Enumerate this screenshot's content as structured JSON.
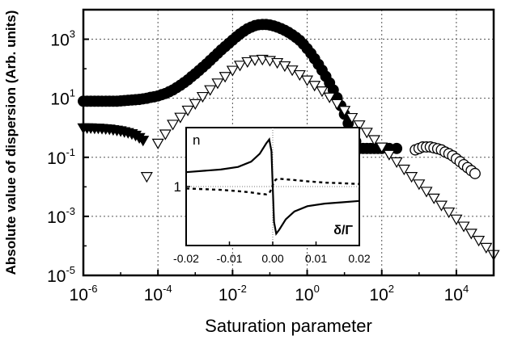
{
  "chart_data": {
    "type": "scatter",
    "title": "",
    "xlabel": "Saturation parameter",
    "ylabel": "Absolute value of dispersion (Arb. units)",
    "xscale": "log",
    "yscale": "log",
    "xlim": [
      1e-06,
      100000.0
    ],
    "ylim": [
      1e-05,
      10000.0
    ],
    "x_ticks": [
      {
        "base": "10",
        "exp": "-6",
        "value": 1e-06
      },
      {
        "base": "10",
        "exp": "-4",
        "value": 0.0001
      },
      {
        "base": "10",
        "exp": "-2",
        "value": 0.01
      },
      {
        "base": "10",
        "exp": "0",
        "value": 1
      },
      {
        "base": "10",
        "exp": "2",
        "value": 100
      },
      {
        "base": "10",
        "exp": "4",
        "value": 10000
      }
    ],
    "y_ticks": [
      {
        "base": "10",
        "exp": "-5",
        "value": 1e-05
      },
      {
        "base": "10",
        "exp": "-3",
        "value": 0.001
      },
      {
        "base": "10",
        "exp": "-1",
        "value": 0.1
      },
      {
        "base": "10",
        "exp": "1",
        "value": 10
      },
      {
        "base": "10",
        "exp": "3",
        "value": 1000
      }
    ],
    "grid": true,
    "legend": "none",
    "series": [
      {
        "marker": "filled-circle",
        "x": [
          1e-06,
          1.26e-06,
          1.58e-06,
          2e-06,
          2.51e-06,
          3.16e-06,
          3.98e-06,
          5.01e-06,
          6.31e-06,
          7.94e-06,
          1e-05,
          1.26e-05,
          1.58e-05,
          2e-05,
          2.51e-05,
          3.16e-05,
          3.98e-05,
          5.01e-05,
          6.31e-05,
          7.94e-05,
          0.0001,
          0.000126,
          0.000158,
          0.0002,
          0.000251,
          0.000316,
          0.000398,
          0.000501,
          0.000631,
          0.000794,
          0.001,
          0.00126,
          0.00158,
          0.002,
          0.00251,
          0.00316,
          0.00398,
          0.00501,
          0.00631,
          0.00794,
          0.01,
          0.0126,
          0.0158,
          0.02,
          0.0251,
          0.0316,
          0.0398,
          0.0501,
          0.0631,
          0.0794,
          0.1,
          0.126,
          0.158,
          0.2,
          0.251,
          0.316,
          0.398,
          0.501,
          0.631,
          0.794,
          1,
          1.26,
          1.58,
          2,
          2.51,
          3.16,
          3.98,
          5.01,
          6.31,
          7.94,
          10,
          12.6,
          15.8,
          20,
          25.1,
          31.6,
          39.8,
          50.1,
          63.1,
          79.4,
          100,
          158,
          251
        ],
        "y": [
          7.94,
          7.94,
          7.94,
          7.94,
          7.94,
          7.94,
          7.94,
          7.94,
          7.94,
          7.94,
          8.13,
          8.32,
          8.51,
          8.71,
          8.91,
          9.12,
          9.55,
          10.0,
          10.7,
          11.2,
          12.0,
          13.2,
          14.5,
          16.6,
          19.1,
          22.9,
          27.5,
          33.9,
          41.7,
          53.7,
          67.6,
          87.1,
          112,
          145,
          191,
          251,
          331,
          437,
          562,
          724,
          933,
          1200,
          1510,
          1860,
          2240,
          2570,
          2880,
          3090,
          3160,
          3160,
          3020,
          2820,
          2570,
          2290,
          2000,
          1700,
          1410,
          1150,
          912,
          676,
          479,
          331,
          219,
          141,
          89.1,
          55,
          33.1,
          19.1,
          10.5,
          5.62,
          2.88,
          1.41,
          0.692,
          0.347,
          0.2,
          0.2,
          0.2,
          0.2,
          0.2,
          0.2,
          0.2,
          0.2,
          0.2
        ]
      },
      {
        "marker": "open-circle",
        "x": [
          794,
          1000,
          1260,
          1580,
          2000,
          2510,
          3160,
          3980,
          5010,
          6310,
          7940,
          10000,
          12600,
          15800,
          20000,
          25100,
          31600
        ],
        "y": [
          0.178,
          0.2,
          0.224,
          0.224,
          0.224,
          0.209,
          0.195,
          0.178,
          0.151,
          0.132,
          0.112,
          0.0891,
          0.0708,
          0.0562,
          0.0447,
          0.0355,
          0.0282
        ]
      },
      {
        "marker": "filled-triangle-down",
        "x": [
          1e-06,
          1.26e-06,
          1.58e-06,
          2e-06,
          2.51e-06,
          3.16e-06,
          3.98e-06,
          5.01e-06,
          6.31e-06,
          7.94e-06,
          1e-05,
          1.26e-05,
          1.58e-05,
          2e-05,
          2.51e-05,
          3.16e-05,
          3.98e-05
        ],
        "y": [
          1.0,
          1.0,
          1.0,
          0.977,
          0.977,
          0.955,
          0.933,
          0.912,
          0.871,
          0.832,
          0.794,
          0.741,
          0.692,
          0.631,
          0.562,
          0.468,
          0.38
        ]
      },
      {
        "marker": "open-triangle-down",
        "x": [
          5.01e-05,
          0.0001,
          0.000158,
          0.000251,
          0.000398,
          0.000631,
          0.001,
          0.00158,
          0.00251,
          0.00398,
          0.00631,
          0.01,
          0.0158,
          0.0251,
          0.0398,
          0.0631,
          0.1,
          0.158,
          0.251,
          0.398,
          0.631,
          1,
          1.58,
          2.51,
          3.98,
          6.31,
          10,
          15.8,
          25.1,
          39.8,
          63.1,
          100,
          158,
          251,
          398,
          631,
          1000,
          1580,
          2510,
          3980,
          6310,
          10000,
          15800,
          25100,
          39800,
          63100,
          100000
        ],
        "y": [
          0.0224,
          0.302,
          0.617,
          1.32,
          2.29,
          3.98,
          6.61,
          11.5,
          19.5,
          33.1,
          54.9,
          89.1,
          132,
          174,
          200,
          209,
          191,
          162,
          126,
          91.2,
          63.1,
          41.7,
          27.5,
          17.8,
          11.0,
          6.61,
          3.89,
          2.24,
          1.26,
          0.708,
          0.398,
          0.224,
          0.126,
          0.0708,
          0.0398,
          0.0224,
          0.0126,
          0.00708,
          0.00417,
          0.0024,
          0.00141,
          0.000813,
          0.000468,
          0.000269,
          0.000155,
          8.91e-05,
          5.13e-05
        ]
      }
    ],
    "inset": {
      "type": "line",
      "ylabel": "n",
      "xlabel": "δ/Γ",
      "xlim": [
        -0.02,
        0.02
      ],
      "x_ticks": [
        "-0.02",
        "-0.01",
        "0.00",
        "0.01",
        "0.02"
      ],
      "x_tick_values": [
        -0.02,
        -0.01,
        0.0,
        0.01,
        0.02
      ],
      "y_ticks": [
        "1"
      ],
      "y_tick_values": [
        1
      ],
      "ylim": [
        0.55,
        1.45
      ],
      "series": [
        {
          "style": "solid",
          "x": [
            -0.02,
            -0.016,
            -0.012,
            -0.008,
            -0.005,
            -0.003,
            -0.0015,
            -0.0008,
            -0.0003,
            0,
            0.0003,
            0.0008,
            0.0015,
            0.003,
            0.005,
            0.008,
            0.012,
            0.016,
            0.02
          ],
          "y": [
            1.11,
            1.12,
            1.13,
            1.15,
            1.19,
            1.25,
            1.33,
            1.36,
            1.27,
            1.0,
            0.73,
            0.64,
            0.67,
            0.75,
            0.81,
            0.85,
            0.87,
            0.88,
            0.89
          ]
        },
        {
          "style": "dashed",
          "x": [
            -0.02,
            -0.016,
            -0.012,
            -0.008,
            -0.005,
            -0.003,
            -0.0015,
            -0.0008,
            -0.0003,
            0,
            0.0003,
            0.0008,
            0.0015,
            0.003,
            0.005,
            0.008,
            0.012,
            0.016,
            0.02
          ],
          "y": [
            0.985,
            0.98,
            0.975,
            0.965,
            0.955,
            0.945,
            0.94,
            0.95,
            0.98,
            1.01,
            1.04,
            1.055,
            1.06,
            1.055,
            1.05,
            1.04,
            1.03,
            1.025,
            1.02
          ]
        }
      ]
    }
  }
}
